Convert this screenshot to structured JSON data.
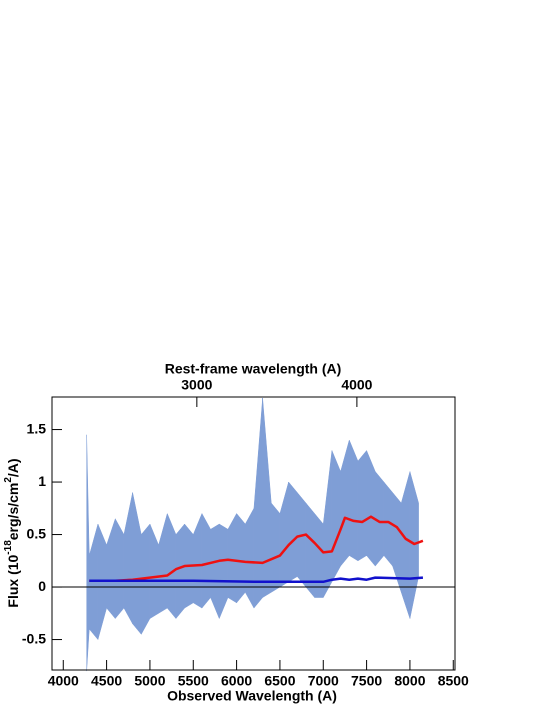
{
  "chart_data": {
    "type": "line",
    "title": "Rest-frame wavelength (A)",
    "xlabel": "Observed Wavelength (A)",
    "ylabel": {
      "parts": [
        "Flux (10",
        "-18",
        "erg/s/cm",
        "2",
        "/A)"
      ]
    },
    "xlim": [
      3870,
      8520
    ],
    "xticks": [
      4000,
      4500,
      5000,
      5500,
      6000,
      6500,
      7000,
      7500,
      8000,
      8500
    ],
    "x2lim": [
      2095,
      4613
    ],
    "x2ticks": [
      3000,
      4000
    ],
    "ylim": [
      -0.79,
      1.81
    ],
    "yticks": [
      -0.5,
      0,
      0.5,
      1,
      1.5
    ],
    "hline": 0,
    "band": {
      "color": "#7f9ed6",
      "x": [
        4270,
        4300,
        4400,
        4500,
        4600,
        4700,
        4800,
        4900,
        5000,
        5100,
        5200,
        5300,
        5400,
        5500,
        5600,
        5700,
        5800,
        5900,
        6000,
        6100,
        6200,
        6300,
        6400,
        6500,
        6600,
        6700,
        6800,
        6900,
        7000,
        7100,
        7200,
        7300,
        7400,
        7500,
        7600,
        7700,
        7800,
        7900,
        8000,
        8100
      ],
      "upper": [
        1.45,
        0.3,
        0.6,
        0.4,
        0.65,
        0.5,
        0.9,
        0.5,
        0.6,
        0.4,
        0.7,
        0.5,
        0.6,
        0.5,
        0.7,
        0.55,
        0.6,
        0.55,
        0.7,
        0.6,
        0.75,
        1.8,
        0.8,
        0.7,
        1.0,
        0.9,
        0.8,
        0.7,
        0.6,
        1.3,
        1.1,
        1.4,
        1.2,
        1.3,
        1.1,
        1.0,
        0.9,
        0.8,
        1.1,
        0.8
      ],
      "lower": [
        -0.8,
        -0.4,
        -0.5,
        -0.2,
        -0.3,
        -0.2,
        -0.35,
        -0.45,
        -0.3,
        -0.25,
        -0.2,
        -0.3,
        -0.2,
        -0.15,
        -0.2,
        -0.1,
        -0.3,
        -0.1,
        -0.15,
        -0.05,
        -0.2,
        -0.1,
        -0.05,
        0.0,
        0.05,
        0.1,
        0.0,
        -0.1,
        -0.1,
        0.05,
        0.2,
        0.3,
        0.25,
        0.3,
        0.2,
        0.3,
        0.2,
        -0.05,
        -0.3,
        0.1
      ]
    },
    "series": [
      {
        "color": "#ee1111",
        "x": [
          4300,
          4600,
          4800,
          5000,
          5200,
          5300,
          5400,
          5600,
          5800,
          5900,
          6100,
          6300,
          6500,
          6600,
          6700,
          6800,
          6900,
          7000,
          7100,
          7200,
          7250,
          7350,
          7450,
          7550,
          7650,
          7750,
          7850,
          7950,
          8050,
          8150
        ],
        "values": [
          0.06,
          0.06,
          0.07,
          0.09,
          0.11,
          0.17,
          0.2,
          0.21,
          0.25,
          0.26,
          0.24,
          0.23,
          0.3,
          0.4,
          0.48,
          0.5,
          0.42,
          0.33,
          0.34,
          0.55,
          0.66,
          0.63,
          0.62,
          0.67,
          0.62,
          0.62,
          0.57,
          0.46,
          0.41,
          0.44
        ]
      },
      {
        "color": "#1111cc",
        "x": [
          4300,
          4800,
          5500,
          6200,
          7000,
          7100,
          7200,
          7300,
          7400,
          7500,
          7600,
          8000,
          8150
        ],
        "values": [
          0.06,
          0.06,
          0.06,
          0.05,
          0.05,
          0.07,
          0.08,
          0.07,
          0.08,
          0.07,
          0.09,
          0.08,
          0.09
        ]
      }
    ]
  }
}
